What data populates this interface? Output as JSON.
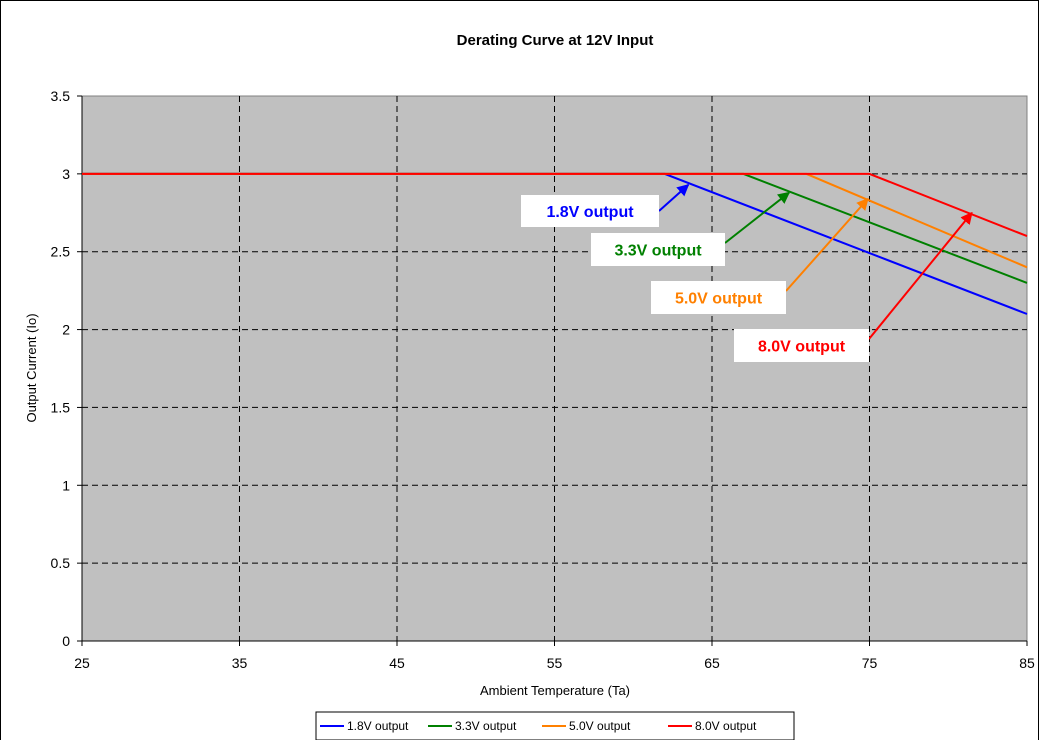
{
  "chart_data": {
    "type": "line",
    "title": "Derating Curve at 12V Input",
    "xlabel": "Ambient Temperature (Ta)",
    "ylabel": "Output Current (Io)",
    "xlim": [
      25,
      85
    ],
    "ylim": [
      0,
      3.5
    ],
    "xticks": [
      25,
      35,
      45,
      55,
      65,
      75,
      85
    ],
    "yticks": [
      0,
      0.5,
      1,
      1.5,
      2,
      2.5,
      3,
      3.5
    ],
    "grid": true,
    "plot_background": "#c0c0c0",
    "legend_position": "bottom",
    "series": [
      {
        "name": "1.8V output",
        "color": "#0000ff",
        "points": [
          [
            25,
            3
          ],
          [
            62,
            3
          ],
          [
            85,
            2.1
          ]
        ]
      },
      {
        "name": "3.3V output",
        "color": "#008000",
        "points": [
          [
            25,
            3
          ],
          [
            67,
            3
          ],
          [
            85,
            2.3
          ]
        ]
      },
      {
        "name": "5.0V output",
        "color": "#ff8000",
        "points": [
          [
            25,
            3
          ],
          [
            71,
            3
          ],
          [
            85,
            2.4
          ]
        ]
      },
      {
        "name": "8.0V output",
        "color": "#ff0000",
        "points": [
          [
            25,
            3
          ],
          [
            75,
            3
          ],
          [
            85,
            2.6
          ]
        ]
      }
    ],
    "annotations": [
      {
        "text": "1.8V output",
        "color": "#0000ff",
        "target": [
          63.5,
          2.93
        ]
      },
      {
        "text": "3.3V output",
        "color": "#008000",
        "target": [
          69.9,
          2.88
        ]
      },
      {
        "text": "5.0V output",
        "color": "#ff8000",
        "target": [
          74.9,
          2.84
        ]
      },
      {
        "text": "8.0V output",
        "color": "#ff0000",
        "target": [
          81.5,
          2.75
        ]
      }
    ]
  }
}
